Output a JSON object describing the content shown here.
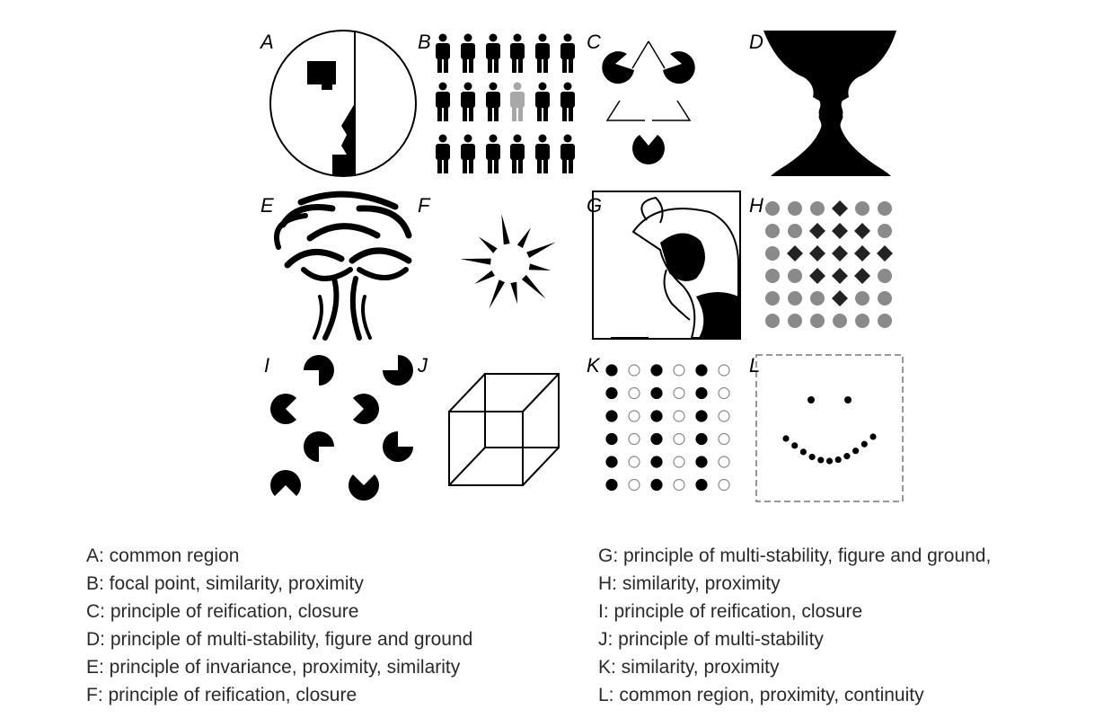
{
  "panels": [
    {
      "letter": "A"
    },
    {
      "letter": "B"
    },
    {
      "letter": "C"
    },
    {
      "letter": "D"
    },
    {
      "letter": "E"
    },
    {
      "letter": "F"
    },
    {
      "letter": "G"
    },
    {
      "letter": "H"
    },
    {
      "letter": "I"
    },
    {
      "letter": "J"
    },
    {
      "letter": "K"
    },
    {
      "letter": "L"
    }
  ],
  "legend": {
    "left": [
      "A: common region",
      "B: focal point, similarity, proximity",
      "C: principle of reification, closure",
      "D: principle of multi-stability, figure and ground",
      "E: principle of invariance, proximity, similarity",
      "F: principle of reification, closure"
    ],
    "right": [
      "G: principle of multi-stability, figure and ground,",
      "H: similarity, proximity",
      "I: principle of reification, closure",
      "J: principle of multi-stability",
      "K: similarity, proximity",
      "L: common region, proximity, continuity"
    ]
  },
  "colors": {
    "ink": "#000000",
    "highlight": "#a8a8a8",
    "dot_gray": "#8a8a8a",
    "text": "#2a2a2a"
  }
}
